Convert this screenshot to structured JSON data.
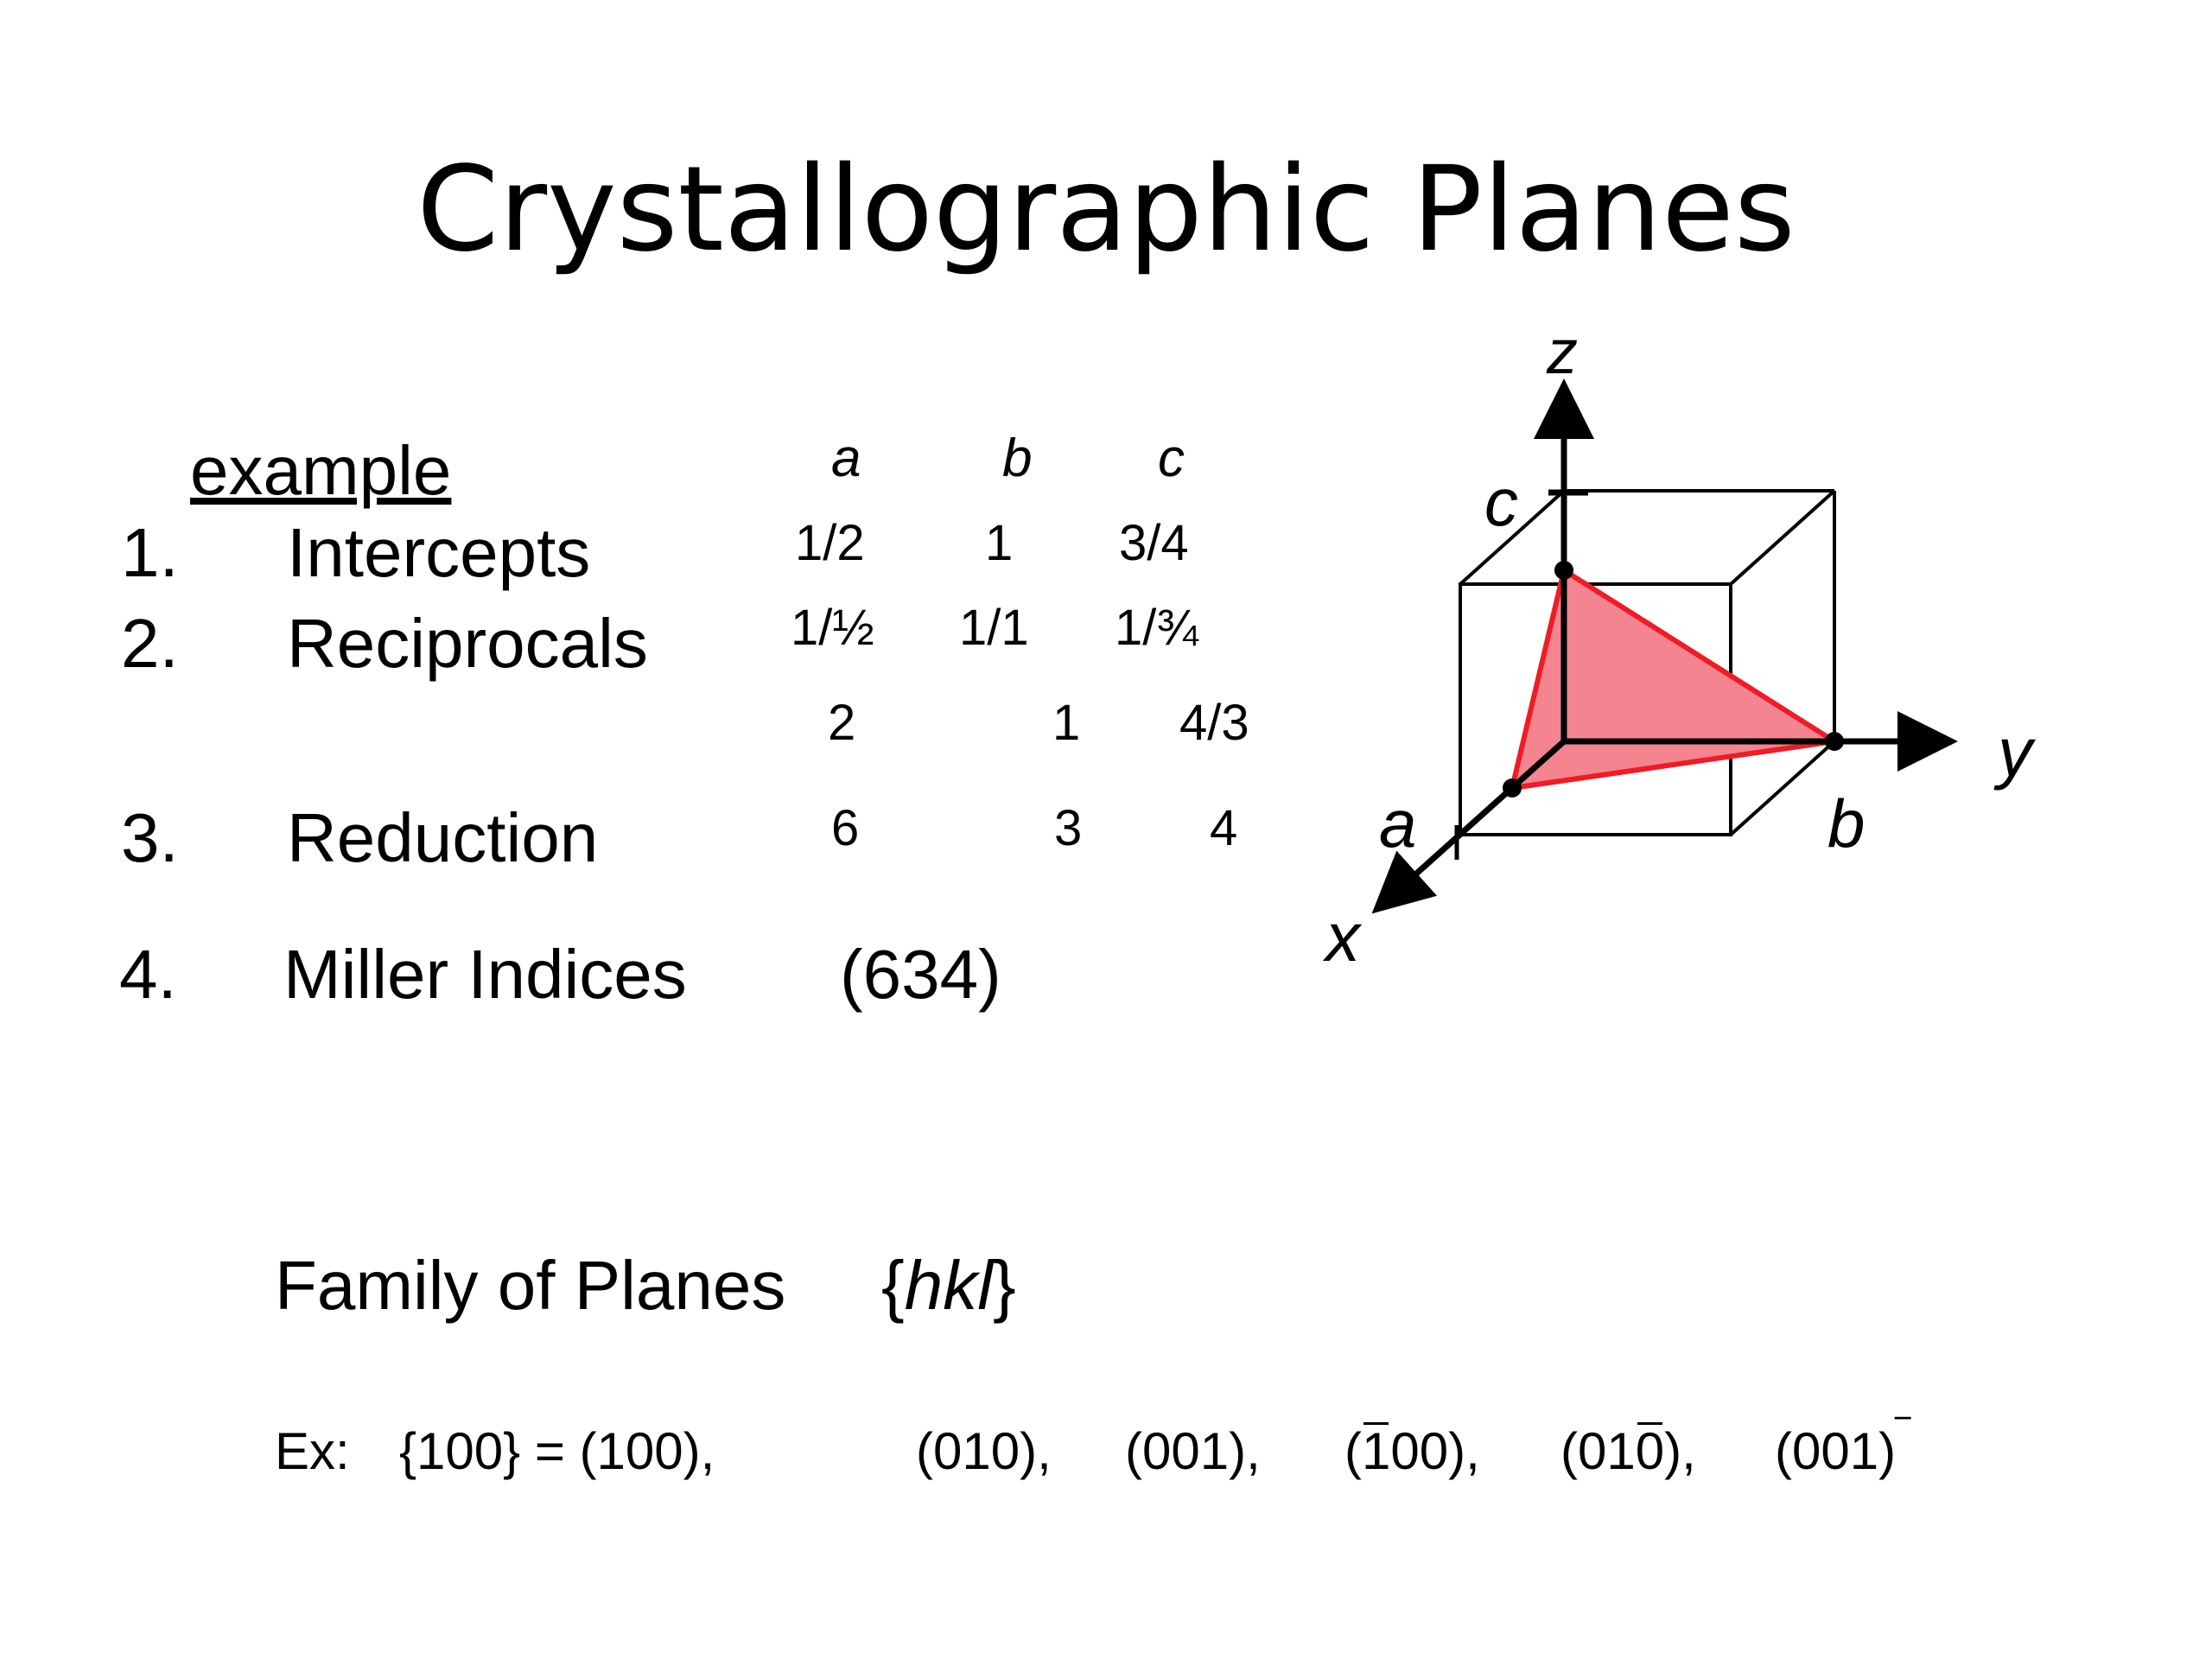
{
  "title": "Crystallographic Planes",
  "example_label": "example",
  "columns": {
    "a": "a",
    "b": "b",
    "c": "c"
  },
  "steps": [
    {
      "num": "1.",
      "label": "Intercepts",
      "a": "1/2",
      "b": "1",
      "c": "3/4"
    },
    {
      "num": "2.",
      "label": "Reciprocals",
      "a": "1/½",
      "b": "1/1",
      "c": "1/¾"
    },
    {
      "num": "",
      "label": "",
      "a": "2",
      "b": "1",
      "c": "4/3"
    },
    {
      "num": "3.",
      "label": "Reduction",
      "a": "6",
      "b": "3",
      "c": "4"
    },
    {
      "num": "4.",
      "label": "Miller Indices",
      "value": "(634)"
    }
  ],
  "family": {
    "label": "Family of Planes",
    "notation_open": "{",
    "notation_italic": "hkl",
    "notation_close": "}"
  },
  "ex": {
    "prefix": "Ex:",
    "set": "{100} = (100),",
    "p2": "(010),",
    "p3": "(001),",
    "p4_open": "(",
    "p4_bar": "1",
    "p4_rest": "00),",
    "p5_open": "(01",
    "p5_bar": "0",
    "p5_rest": "),",
    "p6": "(001)",
    "p6_bar": "‾"
  },
  "diagram": {
    "axis_x": "x",
    "axis_y": "y",
    "axis_z": "z",
    "label_a": "a",
    "label_b": "b",
    "label_c": "c",
    "plane_fill": "#f4848f",
    "plane_stroke": "#ee1c25"
  }
}
